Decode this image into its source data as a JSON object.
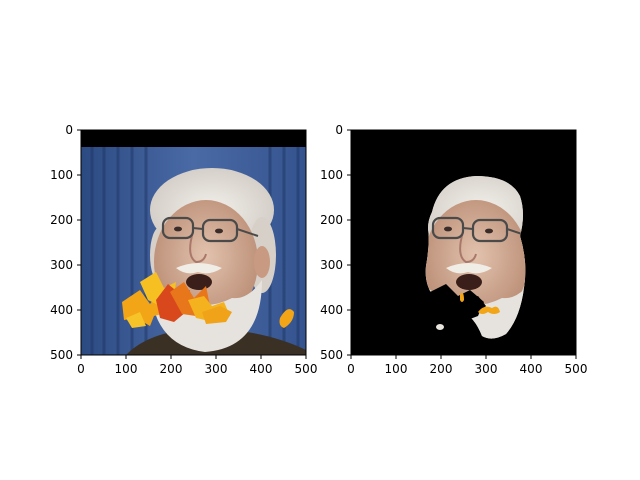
{
  "figure": {
    "background": "#ffffff",
    "panels": [
      {
        "name": "left-panel",
        "content": "original-photo-with-leaf-occlusion",
        "xticks": [
          "0",
          "100",
          "200",
          "300",
          "400",
          "500"
        ],
        "yticks": [
          "0",
          "100",
          "200",
          "300",
          "400",
          "500"
        ],
        "xlim": [
          0,
          500
        ],
        "ylim": [
          500,
          0
        ]
      },
      {
        "name": "right-panel",
        "content": "segmented-face-mask-on-black",
        "xticks": [
          "0",
          "100",
          "200",
          "300",
          "400",
          "500"
        ],
        "yticks": [
          "0",
          "100",
          "200",
          "300",
          "400",
          "500"
        ],
        "xlim": [
          0,
          500
        ],
        "ylim": [
          500,
          0
        ]
      }
    ],
    "colors": {
      "curtain": "#3a5a94",
      "skin": "#d8b4a0",
      "beard": "#e6e3de",
      "leaf_orange": "#f2a516",
      "leaf_red": "#d9481c",
      "mask_background": "#000000"
    }
  }
}
